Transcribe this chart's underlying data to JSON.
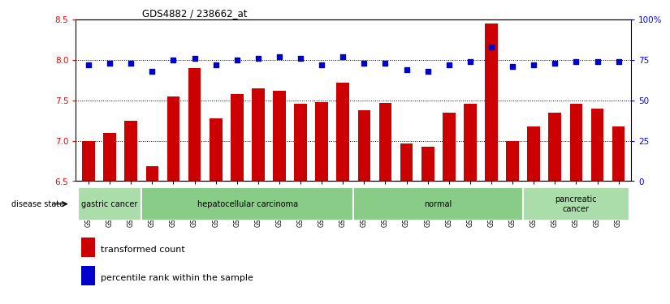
{
  "title": "GDS4882 / 238662_at",
  "samples": [
    "GSM1200291",
    "GSM1200292",
    "GSM1200293",
    "GSM1200294",
    "GSM1200295",
    "GSM1200296",
    "GSM1200297",
    "GSM1200298",
    "GSM1200299",
    "GSM1200300",
    "GSM1200301",
    "GSM1200302",
    "GSM1200303",
    "GSM1200304",
    "GSM1200305",
    "GSM1200306",
    "GSM1200307",
    "GSM1200308",
    "GSM1200309",
    "GSM1200310",
    "GSM1200311",
    "GSM1200312",
    "GSM1200313",
    "GSM1200314",
    "GSM1200315",
    "GSM1200316"
  ],
  "transformed_count": [
    7.0,
    7.1,
    7.25,
    6.68,
    7.55,
    7.9,
    7.28,
    7.58,
    7.65,
    7.62,
    7.46,
    7.48,
    7.72,
    7.38,
    7.47,
    6.97,
    6.93,
    7.35,
    7.46,
    8.45,
    7.0,
    7.18,
    7.35,
    7.46,
    7.4,
    7.18
  ],
  "percentile_rank": [
    72,
    73,
    73,
    68,
    75,
    76,
    72,
    75,
    76,
    77,
    76,
    72,
    77,
    73,
    73,
    69,
    68,
    72,
    74,
    83,
    71,
    72,
    73,
    74,
    74,
    74
  ],
  "ylim_left": [
    6.5,
    8.5
  ],
  "ylim_right": [
    0,
    100
  ],
  "yticks_left": [
    6.5,
    7.0,
    7.5,
    8.0,
    8.5
  ],
  "yticks_right": [
    0,
    25,
    50,
    75,
    100
  ],
  "ytick_labels_right": [
    "0",
    "25",
    "50",
    "75",
    "100%"
  ],
  "bar_color": "#cc0000",
  "dot_color": "#0000cc",
  "bg_color": "#ffffff",
  "grid_color": "#000000",
  "disease_groups": [
    {
      "label": "gastric cancer",
      "start": 0,
      "end": 3,
      "color": "#aaddaa"
    },
    {
      "label": "hepatocellular carcinoma",
      "start": 3,
      "end": 13,
      "color": "#88cc88"
    },
    {
      "label": "normal",
      "start": 13,
      "end": 21,
      "color": "#88cc88"
    },
    {
      "label": "pancreatic\ncancer",
      "start": 21,
      "end": 26,
      "color": "#aaddaa"
    }
  ],
  "legend_items": [
    {
      "color": "#cc0000",
      "label": "transformed count"
    },
    {
      "color": "#0000cc",
      "label": "percentile rank within the sample"
    }
  ]
}
